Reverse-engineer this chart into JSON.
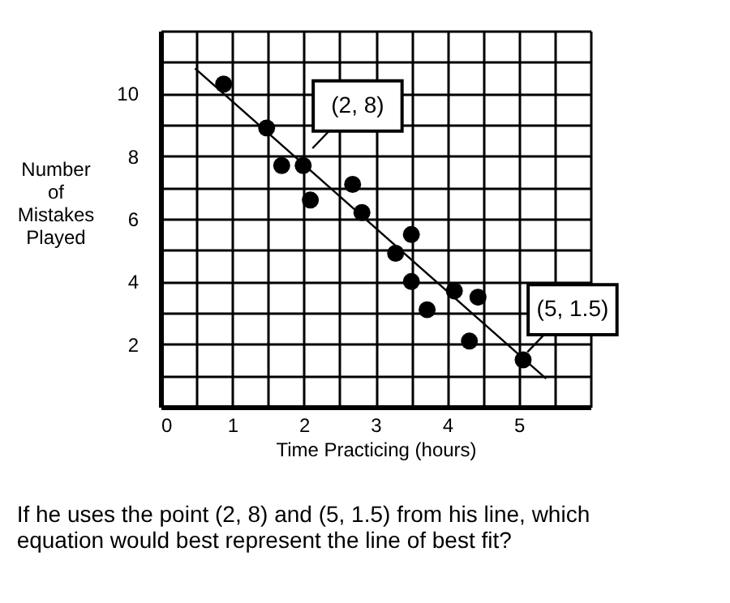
{
  "chart_data": {
    "type": "scatter",
    "xlabel": "Time Practicing (hours)",
    "ylabel": "Number of Mistakes Played",
    "annotations": [
      {
        "text": "(2, 8)",
        "x": 2,
        "y": 8
      },
      {
        "text": "(5, 1.5)",
        "x": 5,
        "y": 1.5
      },
      "If he uses the point (2, 8) and (5, 1.5) from his line, which equation would best represent the line of best fit?"
    ],
    "series": [
      {
        "marker": "circle",
        "color": "#000000",
        "x": [
          0.88,
          1.48,
          1.69,
          1.99,
          2.09,
          2.68,
          2.81,
          3.28,
          3.5,
          3.5,
          3.72,
          4.1,
          4.43,
          4.31,
          5.06
        ],
        "values": [
          10.3,
          8.9,
          7.7,
          7.7,
          6.6,
          7.1,
          6.2,
          4.9,
          5.5,
          4.0,
          3.1,
          3.7,
          3.5,
          2.1,
          1.5
        ]
      },
      {
        "type": "line",
        "marker": "none",
        "line_style": "solid",
        "color": "#000000",
        "x": [
          0.48,
          5.38
        ],
        "values": [
          10.8,
          0.9
        ]
      }
    ],
    "xlim": [
      0,
      6
    ],
    "ylim": [
      0,
      12
    ],
    "xticks": [
      0,
      {
        "value": 0.5,
        "label": null
      },
      1,
      {
        "value": 1.5,
        "label": null
      },
      2,
      {
        "value": 2.5,
        "label": null
      },
      3,
      {
        "value": 3.5,
        "label": null
      },
      4,
      {
        "value": 4.5,
        "label": null
      },
      5,
      {
        "value": 5.5,
        "label": null
      },
      {
        "value": 6,
        "label": null
      }
    ],
    "yticks": [
      {
        "value": 0,
        "label": null
      },
      {
        "value": 1,
        "label": null
      },
      2,
      {
        "value": 3,
        "label": null
      },
      4,
      {
        "value": 5,
        "label": null
      },
      6,
      {
        "value": 7,
        "label": null
      },
      8,
      {
        "value": 9,
        "label": null
      },
      10,
      {
        "value": 11,
        "label": null
      },
      {
        "value": 12,
        "label": null
      }
    ],
    "grid": true
  }
}
